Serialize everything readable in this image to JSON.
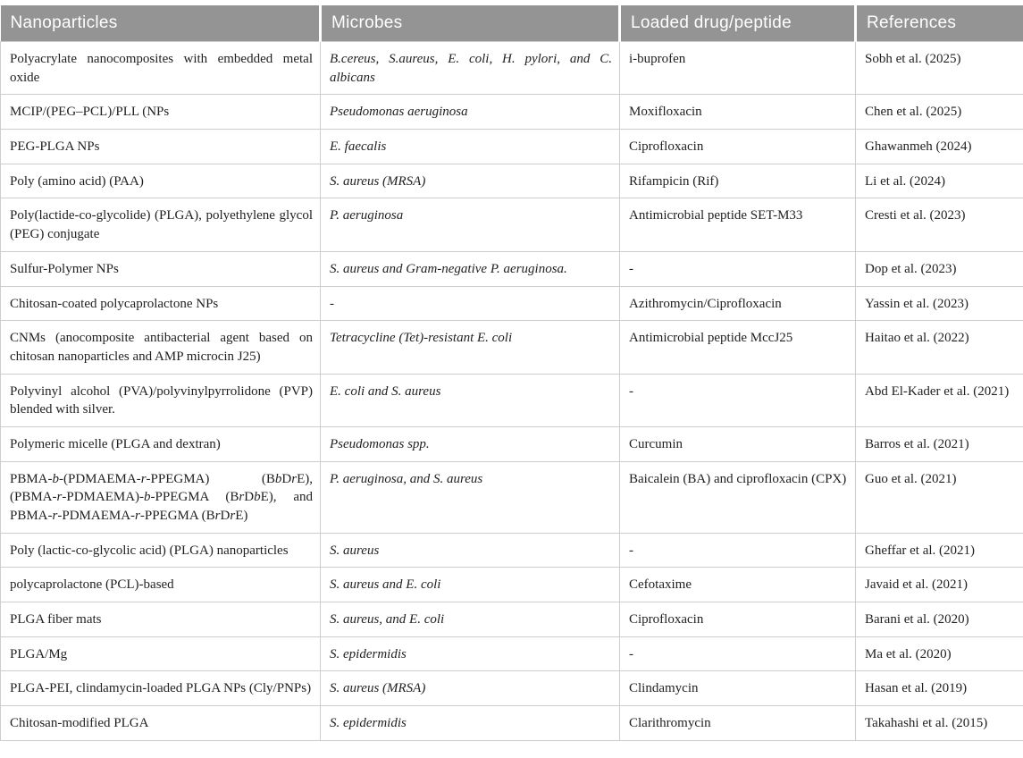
{
  "colors": {
    "header_background": "#949494",
    "header_text": "#ffffff",
    "body_text": "#1f1f1f",
    "grid_line": "#cdcdcd"
  },
  "table": {
    "columns": [
      {
        "label": "Nanoparticles"
      },
      {
        "label": "Microbes"
      },
      {
        "label": "Loaded drug/peptide"
      },
      {
        "label": "References"
      }
    ],
    "rows": [
      {
        "nanoparticles": "Polyacrylate nanocomposites with embedded metal oxide",
        "microbes": "B.cereus, S.aureus, E. coli, H. pylori, and C. albicans",
        "drug": "i-buprofen",
        "reference": "Sobh et al. (2025)"
      },
      {
        "nanoparticles": "MCIP/(PEG–PCL)/PLL (NPs",
        "microbes": "Pseudomonas aeruginosa",
        "drug": "Moxifloxacin",
        "reference": "Chen et al. (2025)"
      },
      {
        "nanoparticles": "PEG-PLGA NPs",
        "microbes": "E. faecalis",
        "drug": "Ciprofloxacin",
        "reference": "Ghawanmeh (2024)"
      },
      {
        "nanoparticles": "Poly (amino acid) (PAA)",
        "microbes": "S. aureus (MRSA)",
        "drug": "Rifampicin (Rif)",
        "reference": "Li et al. (2024)"
      },
      {
        "nanoparticles": "Poly(lactide-co-glycolide) (PLGA), polyethylene glycol (PEG) conjugate",
        "microbes": "P. aeruginosa",
        "drug": "Antimicrobial peptide SET-M33",
        "reference": "Cresti et al. (2023)"
      },
      {
        "nanoparticles": "Sulfur-Polymer NPs",
        "microbes": "S. aureus and Gram-negative P. aeruginosa.",
        "drug": "-",
        "reference": "Dop et al. (2023)"
      },
      {
        "nanoparticles": "Chitosan-coated polycaprolactone NPs",
        "microbes": "-",
        "drug": "Azithromycin/Ciprofloxacin",
        "reference": "Yassin et al. (2023)"
      },
      {
        "nanoparticles": "CNMs (anocomposite antibacterial agent based on chitosan nanoparticles and AMP microcin J25)",
        "microbes": "Tetracycline (Tet)-resistant E. coli",
        "drug": "Antimicrobial peptide MccJ25",
        "reference": "Haitao et al. (2022)"
      },
      {
        "nanoparticles": "Polyvinyl alcohol (PVA)/polyvinylpyrrolidone (PVP) blended with silver.",
        "microbes": "E. coli and S. aureus",
        "drug": "-",
        "reference": "Abd El-Kader et al. (2021)"
      },
      {
        "nanoparticles": "Polymeric micelle (PLGA and dextran)",
        "microbes": "Pseudomonas spp.",
        "drug": "Curcumin",
        "reference": "Barros et al. (2021)"
      },
      {
        "nanoparticles": "PBMA-b-(PDMAEMA-r-PPEGMA) (BbDrE), (PBMA-r-PDMAEMA)-b-PPEGMA (BrDbE), and PBMA-r-PDMAEMA-r-PPEGMA (BrDrE)",
        "nanoparticles_html": "PBMA-<i>b</i>-(PDMAEMA-<i>r</i>-PPEGMA) (B<i>b</i>D<i>r</i>E), (PBMA-<i>r</i>-PDMAEMA)-<i>b</i>-PPEGMA (B<i>r</i>D<i>b</i>E), and PBMA-<i>r</i>-PDMAEMA-<i>r</i>-PPEGMA (B<i>r</i>D<i>r</i>E)",
        "microbes": "P. aeruginosa, and S. aureus",
        "drug": "Baicalein (BA) and ciprofloxacin (CPX)",
        "reference": "Guo et al. (2021)"
      },
      {
        "nanoparticles": "Poly (lactic-co-glycolic acid) (PLGA) nanoparticles",
        "microbes": "S. aureus",
        "drug": "-",
        "reference": "Gheffar et al. (2021)"
      },
      {
        "nanoparticles": "polycaprolactone (PCL)-based",
        "microbes": "S. aureus and E. coli",
        "drug": "Cefotaxime",
        "reference": "Javaid et al. (2021)"
      },
      {
        "nanoparticles": "PLGA fiber mats",
        "microbes": "S. aureus, and E. coli",
        "drug": "Ciprofloxacin",
        "reference": "Barani et al. (2020)"
      },
      {
        "nanoparticles": "PLGA/Mg",
        "microbes": "S. epidermidis",
        "drug": "-",
        "reference": "Ma et al. (2020)"
      },
      {
        "nanoparticles": "PLGA-PEI, clindamycin-loaded PLGA NPs (Cly/PNPs)",
        "microbes": "S. aureus (MRSA)",
        "drug": "Clindamycin",
        "reference": "Hasan et al. (2019)"
      },
      {
        "nanoparticles": "Chitosan-modified PLGA",
        "microbes": "S. epidermidis",
        "drug": "Clarithromycin",
        "reference": "Takahashi et al. (2015)"
      }
    ]
  }
}
